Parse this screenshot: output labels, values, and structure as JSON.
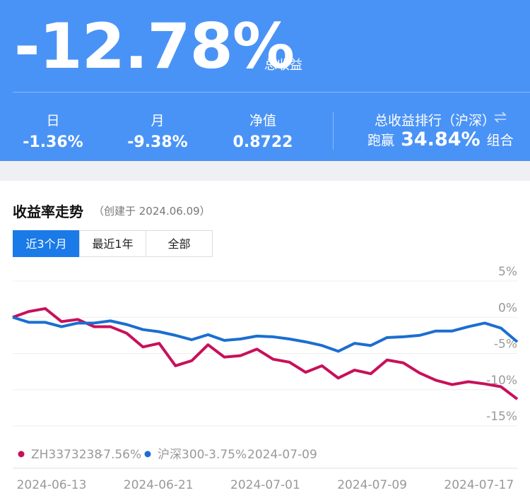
{
  "header": {
    "total": "-12.78%",
    "total_label": "总收益",
    "stats": [
      {
        "label": "日",
        "value": "-1.36%"
      },
      {
        "label": "月",
        "value": "-9.38%"
      },
      {
        "label": "净值",
        "value": "0.8722"
      }
    ],
    "rank": {
      "title": "总收益排行（沪深）",
      "prefix": "跑赢",
      "value": "34.84%",
      "suffix": "组合"
    }
  },
  "section": {
    "title": "收益率走势",
    "subtitle": "（创建于 2024.06.09）",
    "tabs": [
      "近3个月",
      "最近1年",
      "全部"
    ]
  },
  "chart_data": {
    "type": "line",
    "series": [
      {
        "name": "ZH3373238",
        "color": "#c8105a",
        "values": [
          0,
          0.8,
          1.2,
          -0.6,
          -0.3,
          -1.3,
          -1.3,
          -2.2,
          -4.1,
          -3.6,
          -6.7,
          -6.0,
          -3.8,
          -5.5,
          -5.3,
          -4.4,
          -5.8,
          -6.2,
          -7.6,
          -6.7,
          -8.4,
          -7.3,
          -7.8,
          -5.9,
          -6.3,
          -7.7,
          -8.7,
          -9.3,
          -8.9,
          -9.2,
          -9.6,
          -11.3
        ]
      },
      {
        "name": "沪深300",
        "color": "#1a6ed1",
        "values": [
          0,
          -0.7,
          -0.7,
          -1.3,
          -0.8,
          -0.8,
          -0.5,
          -1.0,
          -1.7,
          -2.0,
          -2.5,
          -3.1,
          -2.4,
          -3.2,
          -3.0,
          -2.6,
          -2.7,
          -3.0,
          -3.4,
          -3.9,
          -4.7,
          -3.6,
          -3.9,
          -2.8,
          -2.7,
          -2.5,
          -1.9,
          -1.9,
          -1.3,
          -0.8,
          -1.5,
          -3.4
        ]
      }
    ],
    "ylim": [
      -15,
      5
    ],
    "yticks": [
      {
        "value": 5,
        "label": "5%"
      },
      {
        "value": 0,
        "label": "0%"
      },
      {
        "value": -5,
        "label": "-5%"
      },
      {
        "value": -10,
        "label": "-10%"
      },
      {
        "value": -15,
        "label": "-15%"
      }
    ],
    "grid": true,
    "x_labels": [
      "2024-06-13",
      "2024-06-21",
      "2024-07-01",
      "2024-07-09",
      "2024-07-17"
    ],
    "tooltip": {
      "values": [
        "-7.56%",
        "-3.75%"
      ],
      "date": "2024-07-09"
    }
  }
}
